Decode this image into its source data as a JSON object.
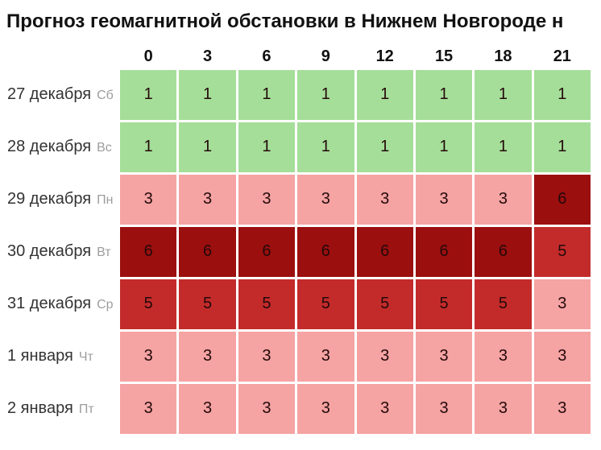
{
  "title": "Прогноз геомагнитной обстановки в Нижнем Новгороде н",
  "table": {
    "hours": [
      "0",
      "3",
      "6",
      "9",
      "12",
      "15",
      "18",
      "21"
    ],
    "rows": [
      {
        "date": "27 декабря",
        "day": "Сб",
        "values": [
          1,
          1,
          1,
          1,
          1,
          1,
          1,
          1
        ]
      },
      {
        "date": "28 декабря",
        "day": "Вс",
        "values": [
          1,
          1,
          1,
          1,
          1,
          1,
          1,
          1
        ]
      },
      {
        "date": "29 декабря",
        "day": "Пн",
        "values": [
          3,
          3,
          3,
          3,
          3,
          3,
          3,
          6
        ]
      },
      {
        "date": "30 декабря",
        "day": "Вт",
        "values": [
          6,
          6,
          6,
          6,
          6,
          6,
          6,
          5
        ]
      },
      {
        "date": "31 декабря",
        "day": "Ср",
        "values": [
          5,
          5,
          5,
          5,
          5,
          5,
          5,
          3
        ]
      },
      {
        "date": "1 января",
        "day": "Чт",
        "values": [
          3,
          3,
          3,
          3,
          3,
          3,
          3,
          3
        ]
      },
      {
        "date": "2 января",
        "day": "Пт",
        "values": [
          3,
          3,
          3,
          3,
          3,
          3,
          3,
          3
        ]
      }
    ],
    "value_colors": {
      "1": "#a5de99",
      "3": "#f5a3a3",
      "5": "#c32b2b",
      "6": "#9c0f0f"
    }
  },
  "chart_data": {
    "type": "heatmap",
    "title": "Прогноз геомагнитной обстановки в Нижнем Новгороде н",
    "x": [
      "0",
      "3",
      "6",
      "9",
      "12",
      "15",
      "18",
      "21"
    ],
    "y": [
      "27 декабря Сб",
      "28 декабря Вс",
      "29 декабря Пн",
      "30 декабря Вт",
      "31 декабря Ср",
      "1 января Чт",
      "2 января Пт"
    ],
    "values": [
      [
        1,
        1,
        1,
        1,
        1,
        1,
        1,
        1
      ],
      [
        1,
        1,
        1,
        1,
        1,
        1,
        1,
        1
      ],
      [
        3,
        3,
        3,
        3,
        3,
        3,
        3,
        6
      ],
      [
        6,
        6,
        6,
        6,
        6,
        6,
        6,
        5
      ],
      [
        5,
        5,
        5,
        5,
        5,
        5,
        5,
        3
      ],
      [
        3,
        3,
        3,
        3,
        3,
        3,
        3,
        3
      ],
      [
        3,
        3,
        3,
        3,
        3,
        3,
        3,
        3
      ]
    ],
    "value_range": [
      1,
      6
    ],
    "color_map": {
      "1": "#a5de99",
      "3": "#f5a3a3",
      "5": "#c32b2b",
      "6": "#9c0f0f"
    },
    "legend": "none",
    "grid": "white 3px gaps between cells"
  }
}
